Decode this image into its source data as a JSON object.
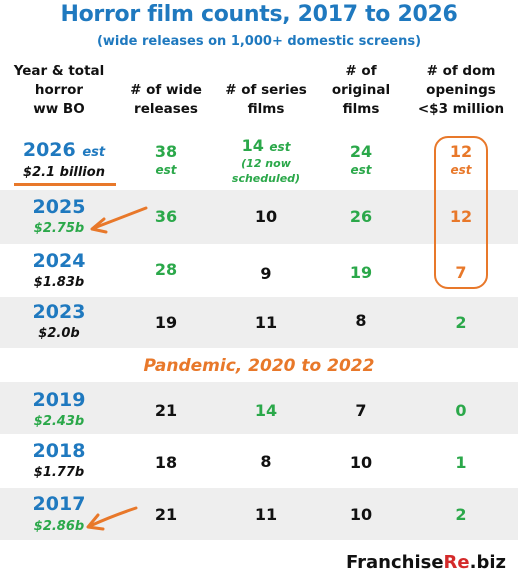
{
  "title": "Horror film counts, 2017 to 2026",
  "subtitle": "(wide releases on 1,000+ domestic screens)",
  "headers": {
    "col1_line1": "Year & total",
    "col1_line2": "horror",
    "col1_line3": "ww BO",
    "col2_line1": "# of wide",
    "col2_line2": "releases",
    "col3_line1": "# of series",
    "col3_line2": "films",
    "col4_line1": "# of",
    "col4_line2": "original",
    "col4_line3": "films",
    "col5_line1": "# of dom",
    "col5_line2": "openings",
    "col5_line3": "<$3 million"
  },
  "rows": [
    {
      "year": "2026",
      "year_suffix": "est",
      "bo": "$2.1 billion",
      "wide": "38",
      "wide_sub": "est",
      "series": "14",
      "series_suffix": "est",
      "series_sub1": "(12 now",
      "series_sub2": "scheduled)",
      "original": "24",
      "original_sub": "est",
      "openings": "12",
      "openings_sub": "est"
    },
    {
      "year": "2025",
      "bo": "$2.75b",
      "wide": "36",
      "series": "10",
      "original": "26",
      "openings": "12"
    },
    {
      "year": "2024",
      "bo": "$1.83b",
      "wide": "28",
      "series": "9",
      "original": "19",
      "openings": "7"
    },
    {
      "year": "2023",
      "bo": "$2.0b",
      "wide": "19",
      "series": "11",
      "original": "8",
      "openings": "2"
    },
    {
      "year": "2019",
      "bo": "$2.43b",
      "wide": "21",
      "series": "14",
      "original": "7",
      "openings": "0"
    },
    {
      "year": "2018",
      "bo": "$1.77b",
      "wide": "18",
      "series": "8",
      "original": "10",
      "openings": "1"
    },
    {
      "year": "2017",
      "bo": "$2.86b",
      "wide": "21",
      "series": "11",
      "original": "10",
      "openings": "2"
    }
  ],
  "pandemic_label": "Pandemic, 2020 to 2022",
  "logo": {
    "part1": "Franchise",
    "part2": "Re",
    "part3": ".biz"
  },
  "colors": {
    "blue": "#1f79bf",
    "green": "#2ba84a",
    "orange": "#e8782a",
    "shade": "#eeeeee"
  }
}
